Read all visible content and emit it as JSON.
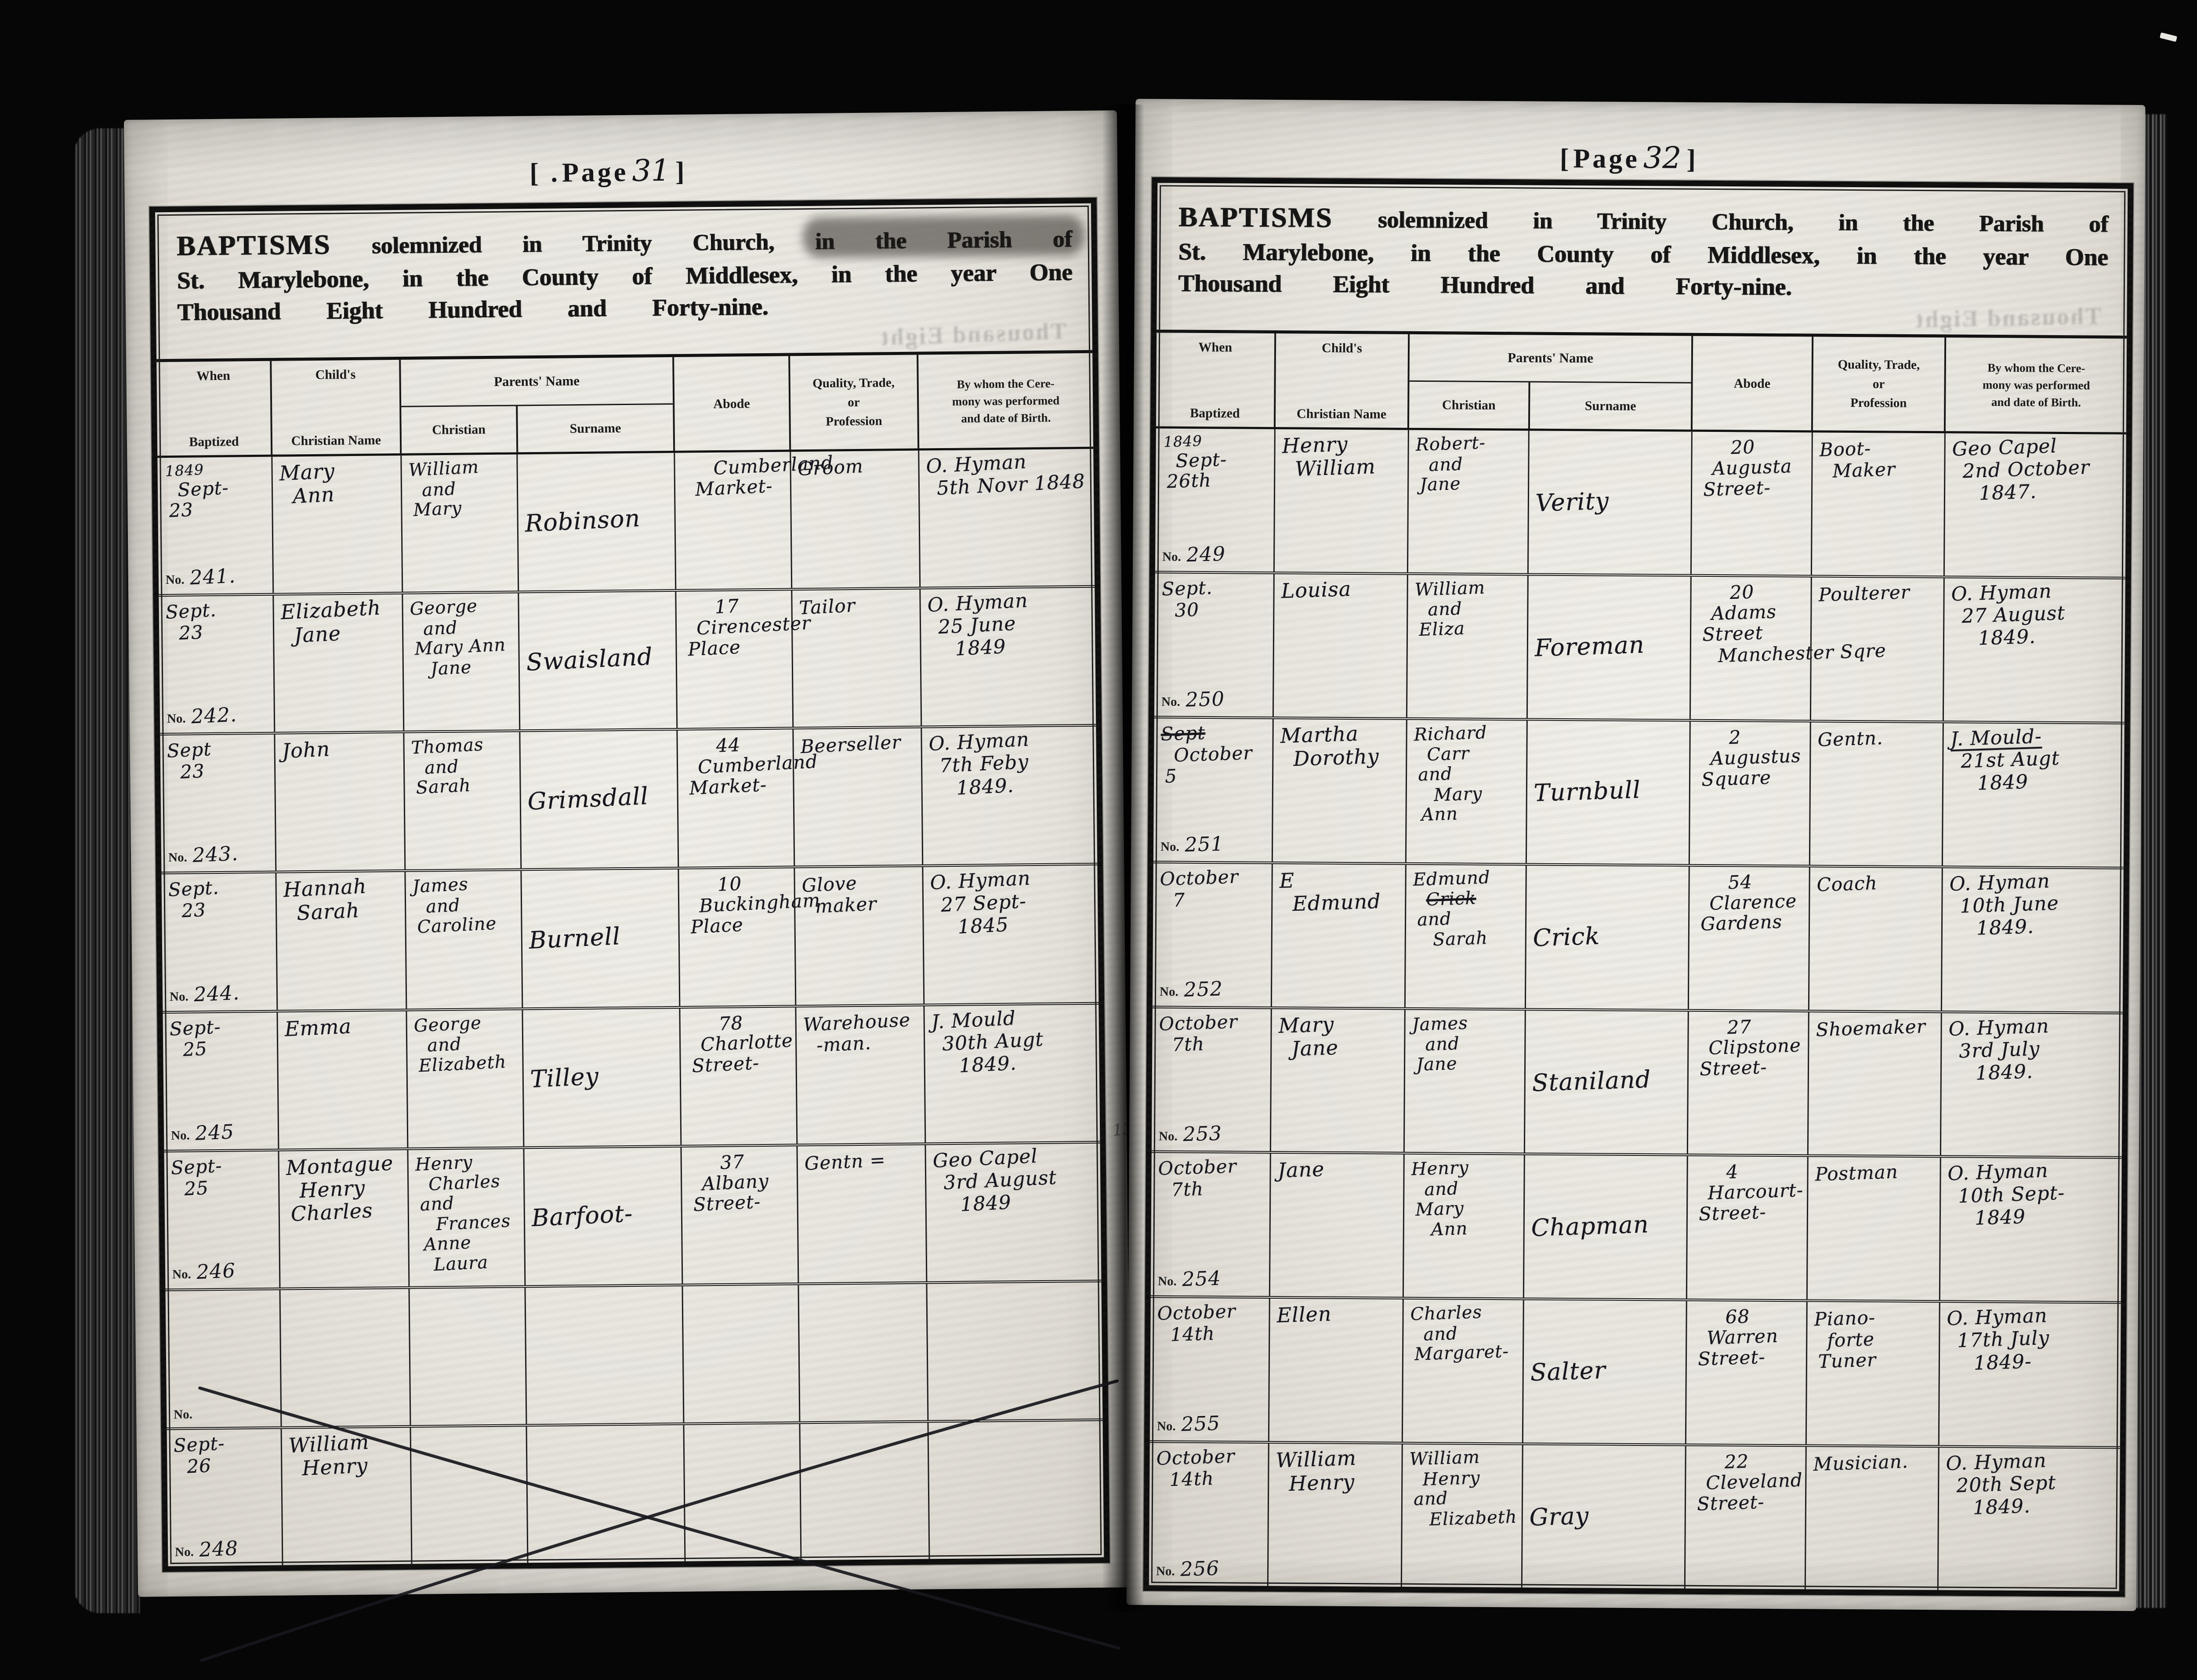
{
  "form": {
    "no_label": "No.",
    "title": {
      "lead": "BAPTISMS",
      "line1_rest": "solemnized in Trinity Church, in the Parish of",
      "line2": "St. Marylebone, in the County of Middlesex, in the year One",
      "line3": "Thousand Eight Hundred and Forty-nine.",
      "ghost": "Thousand Eight"
    },
    "columns": {
      "when_top": "When",
      "when_bottom": "Baptized",
      "child_top": "Child's",
      "child_bottom": "Christian Name",
      "parents": "Parents' Name",
      "parents_christian": "Christian",
      "parents_surname": "Surname",
      "abode": "Abode",
      "quality": "Quality, Trade,\nor\nProfession",
      "bywhom": "By whom the Cere-\nmony was performed\nand date of Birth."
    }
  },
  "pages": [
    {
      "label": {
        "open": "[ .",
        "word": "Page",
        "number": "31",
        "close": "]"
      },
      "margin_note": "13",
      "rows": [
        {
          "when": "1849\nSept-\n23",
          "no": "241.",
          "child": "Mary\nAnn",
          "pchristian": "William\nand\nMary",
          "surname": "Robinson",
          "abode": "Cumberland\nMarket-",
          "quality": "Groom",
          "bywhom": "O. Hyman\n5th Novr 1848"
        },
        {
          "when": "Sept.\n23",
          "no": "242.",
          "child": "Elizabeth\nJane",
          "pchristian": "George\nand\nMary Ann\nJane",
          "surname": "Swaisland",
          "abode": "17\nCirencester\nPlace",
          "quality": "Tailor",
          "bywhom": "O. Hyman\n25 June\n1849"
        },
        {
          "when": "Sept\n23",
          "no": "243.",
          "child": "John",
          "pchristian": "Thomas\nand\nSarah",
          "surname": "Grimsdall",
          "abode": "44\nCumberland\nMarket-",
          "quality": "Beerseller",
          "bywhom": "O. Hyman\n7th Feby\n1849."
        },
        {
          "when": "Sept.\n23",
          "no": "244.",
          "child": "Hannah\nSarah",
          "pchristian": "James\nand\nCaroline",
          "surname": "Burnell",
          "abode": "10\nBuckingham\nPlace",
          "quality": "Glove\nmaker",
          "bywhom": "O. Hyman\n27 Sept-\n1845"
        },
        {
          "when": "Sept-\n25",
          "no": "245",
          "child": "Emma",
          "pchristian": "George\nand\nElizabeth",
          "surname": "Tilley",
          "abode": "78\nCharlotte\nStreet-",
          "quality": "Warehouse\n-man.",
          "bywhom": "J. Mould\n30th Augt\n1849."
        },
        {
          "when": "Sept-\n25",
          "no": "246",
          "child": "Montague\nHenry\nCharles",
          "pchristian": "Henry\nCharles\nand\nFrances\nAnne\nLaura",
          "surname": "Barfoot-",
          "abode": "37\nAlbany\nStreet-",
          "quality": "Gentn =",
          "bywhom": "Geo Capel\n3rd August\n1849"
        },
        {
          "when": "",
          "no": "",
          "child": "",
          "pchristian": "",
          "surname": "",
          "abode": "",
          "quality": "",
          "bywhom": ""
        },
        {
          "when": "Sept-\n26",
          "no": "248",
          "child": "William\nHenry",
          "pchristian": "",
          "surname": "",
          "abode": "",
          "quality": "",
          "bywhom": ""
        }
      ]
    },
    {
      "label": {
        "open": "[",
        "word": "Page",
        "number": "32",
        "close": "]"
      },
      "margin_note": "",
      "rows": [
        {
          "when": "1849\nSept-\n26th",
          "no": "249",
          "child": "Henry\nWilliam",
          "pchristian": "Robert-\nand\nJane",
          "surname": "Verity",
          "abode": "20\nAugusta\nStreet-",
          "quality": "Boot-\nMaker",
          "bywhom": "Geo Capel\n2nd October\n1847."
        },
        {
          "when": "Sept.\n30",
          "no": "250",
          "child": "Louisa",
          "pchristian": "William\nand\nEliza",
          "surname": "Foreman",
          "abode": "20\nAdams\nStreet\nManchester Sqre",
          "quality": "Poulterer",
          "bywhom": "O. Hyman\n27 August\n1849."
        },
        {
          "when": "~Sept\nOctober\n5",
          "no": "251",
          "child": "Martha\nDorothy",
          "pchristian": "Richard\nCarr\nand\nMary\nAnn",
          "surname": "Turnbull",
          "abode": "2\nAugustus\nSquare",
          "quality": "Gentn.",
          "bywhom": "_J. Mould-\n21st Augt\n1849"
        },
        {
          "when": "October\n7",
          "no": "252",
          "child": "E\nEdmund",
          "pchristian": "Edmund\n~Crick\nand\nSarah",
          "surname": "Crick",
          "abode": "54\nClarence\nGardens",
          "quality": "Coach",
          "bywhom": "O. Hyman\n10th June\n1849."
        },
        {
          "when": "October\n7th",
          "no": "253",
          "child": "Mary\nJane",
          "pchristian": "James\nand\nJane",
          "surname": "Staniland",
          "abode": "27\nClipstone\nStreet-",
          "quality": "Shoemaker",
          "bywhom": "O. Hyman\n3rd July\n1849."
        },
        {
          "when": "October\n7th",
          "no": "254",
          "child": "Jane",
          "pchristian": "Henry\nand\nMary\nAnn",
          "surname": "Chapman",
          "abode": "4\nHarcourt-\nStreet-",
          "quality": "Postman",
          "bywhom": "O. Hyman\n10th Sept-\n1849"
        },
        {
          "when": "October\n14th",
          "no": "255",
          "child": "Ellen",
          "pchristian": "Charles\nand\nMargaret-",
          "surname": "Salter",
          "abode": "68\nWarren\nStreet-",
          "quality": "Piano-\nforte\nTuner",
          "bywhom": "O. Hyman\n17th July\n1849-"
        },
        {
          "when": "October\n14th",
          "no": "256",
          "child": "William\nHenry",
          "pchristian": "William\nHenry\nand\nElizabeth",
          "surname": "Gray",
          "abode": "22\nCleveland\nStreet-",
          "quality": "Musician.",
          "bywhom": "O. Hyman\n20th Sept\n1849."
        }
      ]
    }
  ]
}
